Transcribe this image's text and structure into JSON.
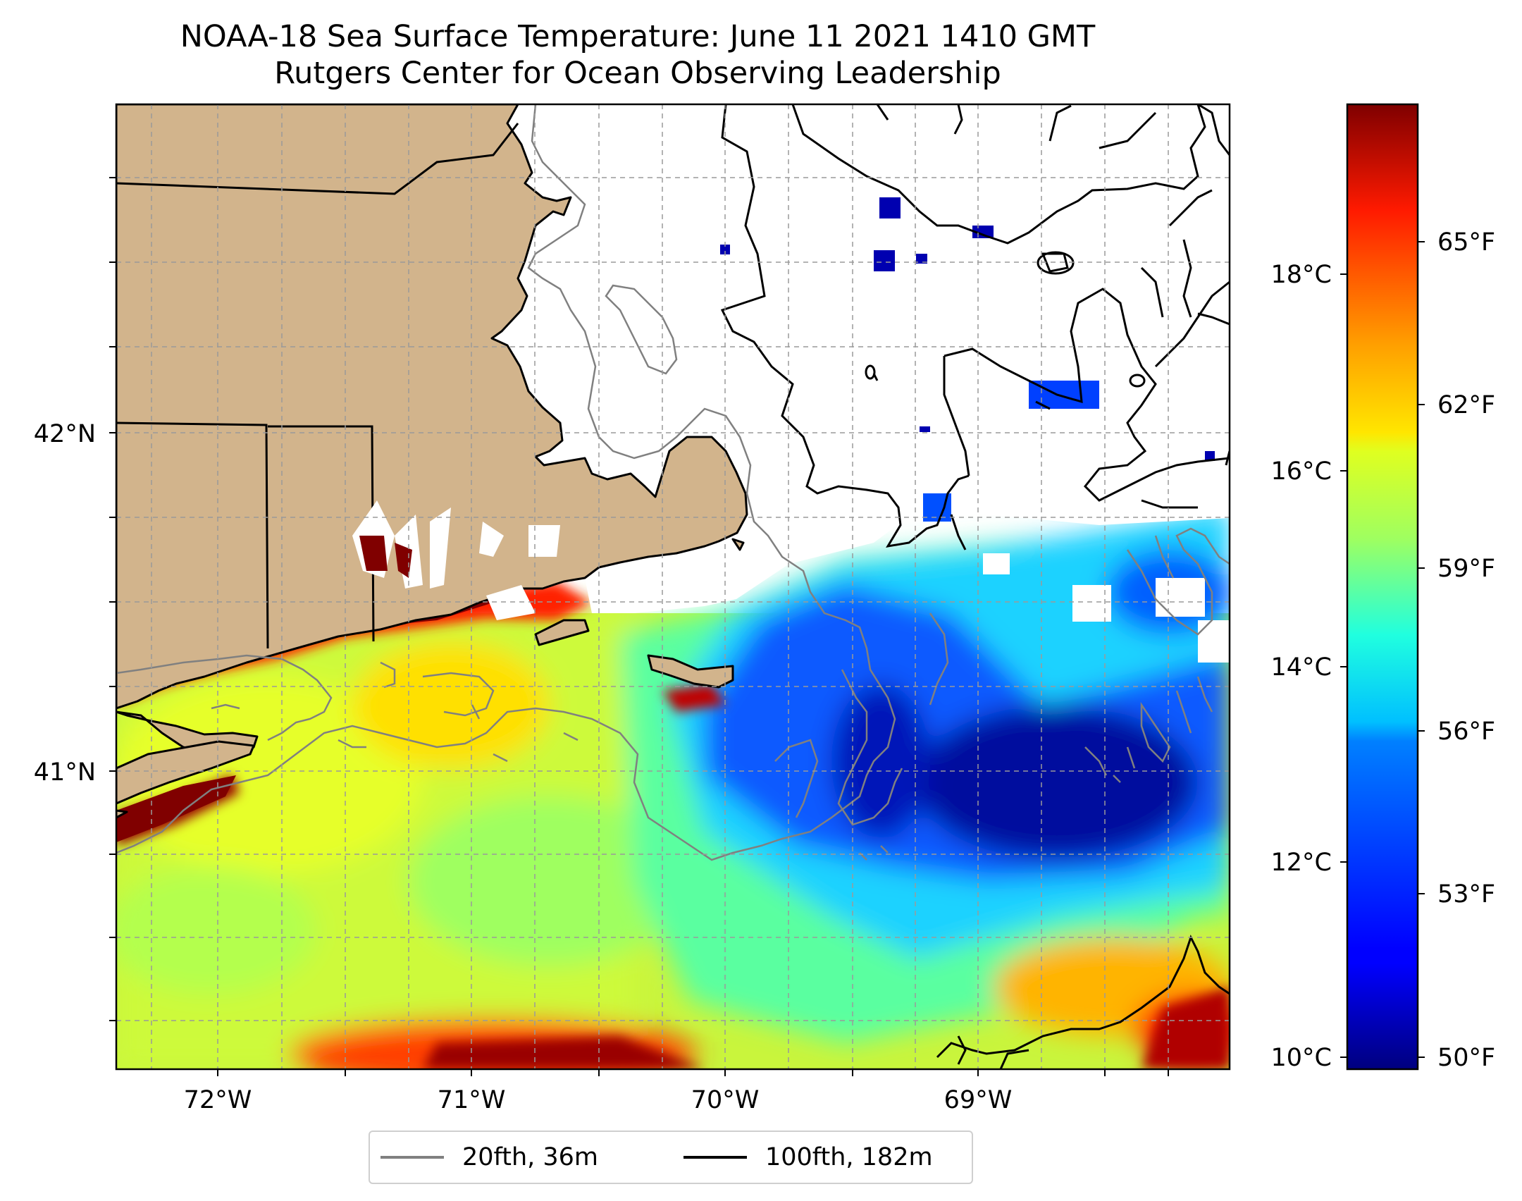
{
  "title": {
    "line1": "NOAA-18 Sea Surface Temperature: June 11 2021 1410 GMT",
    "line2": "Rutgers Center for Ocean Observing Leadership"
  },
  "map": {
    "lon_labels": [
      "72°W",
      "71°W",
      "70°W",
      "69°W"
    ],
    "lat_labels": [
      "42°N",
      "41°N"
    ],
    "land_color": "#d2b48c",
    "no_data_color": "#ffffff",
    "gridlines": "dashed"
  },
  "colorbar": {
    "colormap": "jet",
    "celsius_labels": [
      "18°C",
      "16°C",
      "14°C",
      "12°C",
      "10°C"
    ],
    "fahrenheit_labels": [
      "65°F",
      "62°F",
      "59°F",
      "56°F",
      "53°F",
      "50°F"
    ]
  },
  "legend": {
    "items": [
      {
        "label": "20fth, 36m",
        "color": "#808080"
      },
      {
        "label": "100fth, 182m",
        "color": "#000000"
      }
    ]
  }
}
